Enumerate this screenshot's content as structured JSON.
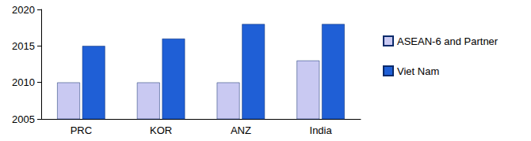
{
  "chart_data": {
    "type": "bar",
    "categories": [
      "PRC",
      "KOR",
      "ANZ",
      "India"
    ],
    "series": [
      {
        "name": "ASEAN-6 and Partner",
        "color": "#c9c9f2",
        "values": [
          2010,
          2010,
          2010,
          2013
        ]
      },
      {
        "name": "Viet Nam",
        "color": "#1f5fd6",
        "values": [
          2015,
          2016,
          2018,
          2018
        ]
      }
    ],
    "ylim": [
      2005,
      2020
    ],
    "yticks": [
      2005,
      2010,
      2015,
      2020
    ],
    "grid": false,
    "legend": "right"
  }
}
